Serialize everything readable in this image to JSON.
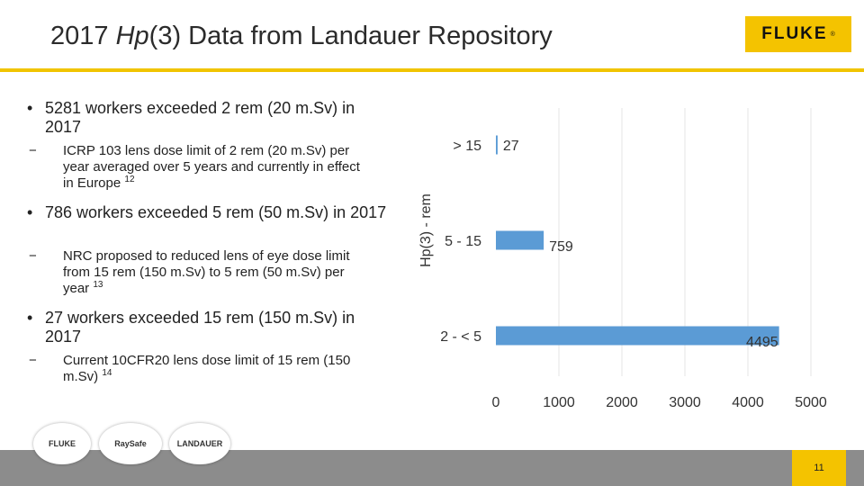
{
  "header": {
    "title_prefix": "2017 ",
    "title_italic": "Hp",
    "title_suffix": "(3) Data from Landauer Repository",
    "logo_text": "FLUKE",
    "logo_mark": "®"
  },
  "bullets": [
    {
      "text": "5281 workers exceeded 2 rem (20 m.Sv) in 2017",
      "sub": {
        "text": "ICRP 103 lens dose limit of 2 rem (20 m.Sv) per year averaged over 5 years and currently in effect in Europe",
        "ref": "12"
      }
    },
    {
      "text": "786 workers exceeded 5 rem (50 m.Sv) in 2017",
      "sub": {
        "text": "NRC proposed to reduced lens of eye dose limit from 15 rem (150 m.Sv) to 5 rem (50 m.Sv) per year",
        "ref": "13"
      }
    },
    {
      "text": "27 workers exceeded 15 rem (150 m.Sv) in 2017",
      "sub": {
        "text": "Current 10CFR20 lens dose limit of 15 rem (150 m.Sv)",
        "ref": "14"
      }
    }
  ],
  "bullet_symbol": "•",
  "dash_symbol": "−",
  "chart_data": {
    "type": "bar",
    "orientation": "horizontal",
    "categories": [
      "> 15",
      "5 - 15",
      "2 - < 5"
    ],
    "values": [
      27,
      759,
      4495
    ],
    "ylabel": "Hp(3) - rem",
    "xlabel": "",
    "xlim": [
      0,
      5000
    ],
    "xticks": [
      0,
      1000,
      2000,
      3000,
      4000,
      5000
    ],
    "bar_color": "#5b9bd5",
    "grid": true,
    "grid_color": "#e6e6e6"
  },
  "footer": {
    "page_number": "11",
    "partner_logos": [
      "FLUKE",
      "RaySafe",
      "LANDAUER"
    ]
  },
  "colors": {
    "accent": "#f4c300",
    "footer": "#8c8c8c"
  }
}
